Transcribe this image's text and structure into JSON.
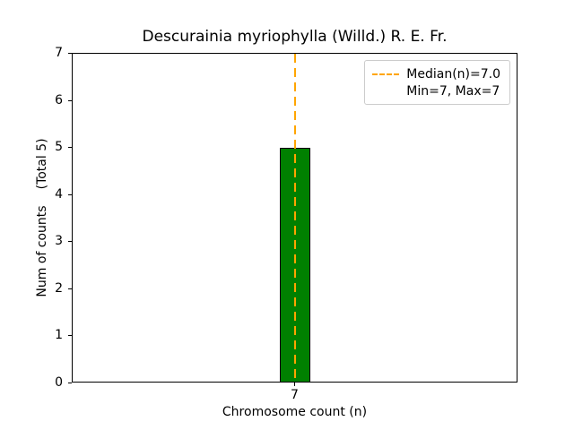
{
  "chart_data": {
    "type": "bar",
    "title": "Descurainia myriophylla (Willd.) R. E. Fr.",
    "xlabel": "Chromosome count (n)",
    "ylabel": "Num of counts",
    "ylabel_secondary": "(Total 5)",
    "categories": [
      "7"
    ],
    "values": [
      5
    ],
    "ylim": [
      0,
      7
    ],
    "yticks": [
      0,
      1,
      2,
      3,
      4,
      5,
      6,
      7
    ],
    "grid": false,
    "bar_color": "#008000",
    "bar_edge_color": "#000000",
    "median_line": {
      "x": "7",
      "color": "#FFA500",
      "style": "dashed",
      "label": "Median(n)=7.0"
    },
    "legend": {
      "position": "upper right",
      "entries": [
        {
          "label": "Median(n)=7.0",
          "symbol": "dashed-line",
          "color": "#FFA500"
        },
        {
          "label": "Min=7, Max=7",
          "symbol": "none"
        }
      ]
    }
  }
}
